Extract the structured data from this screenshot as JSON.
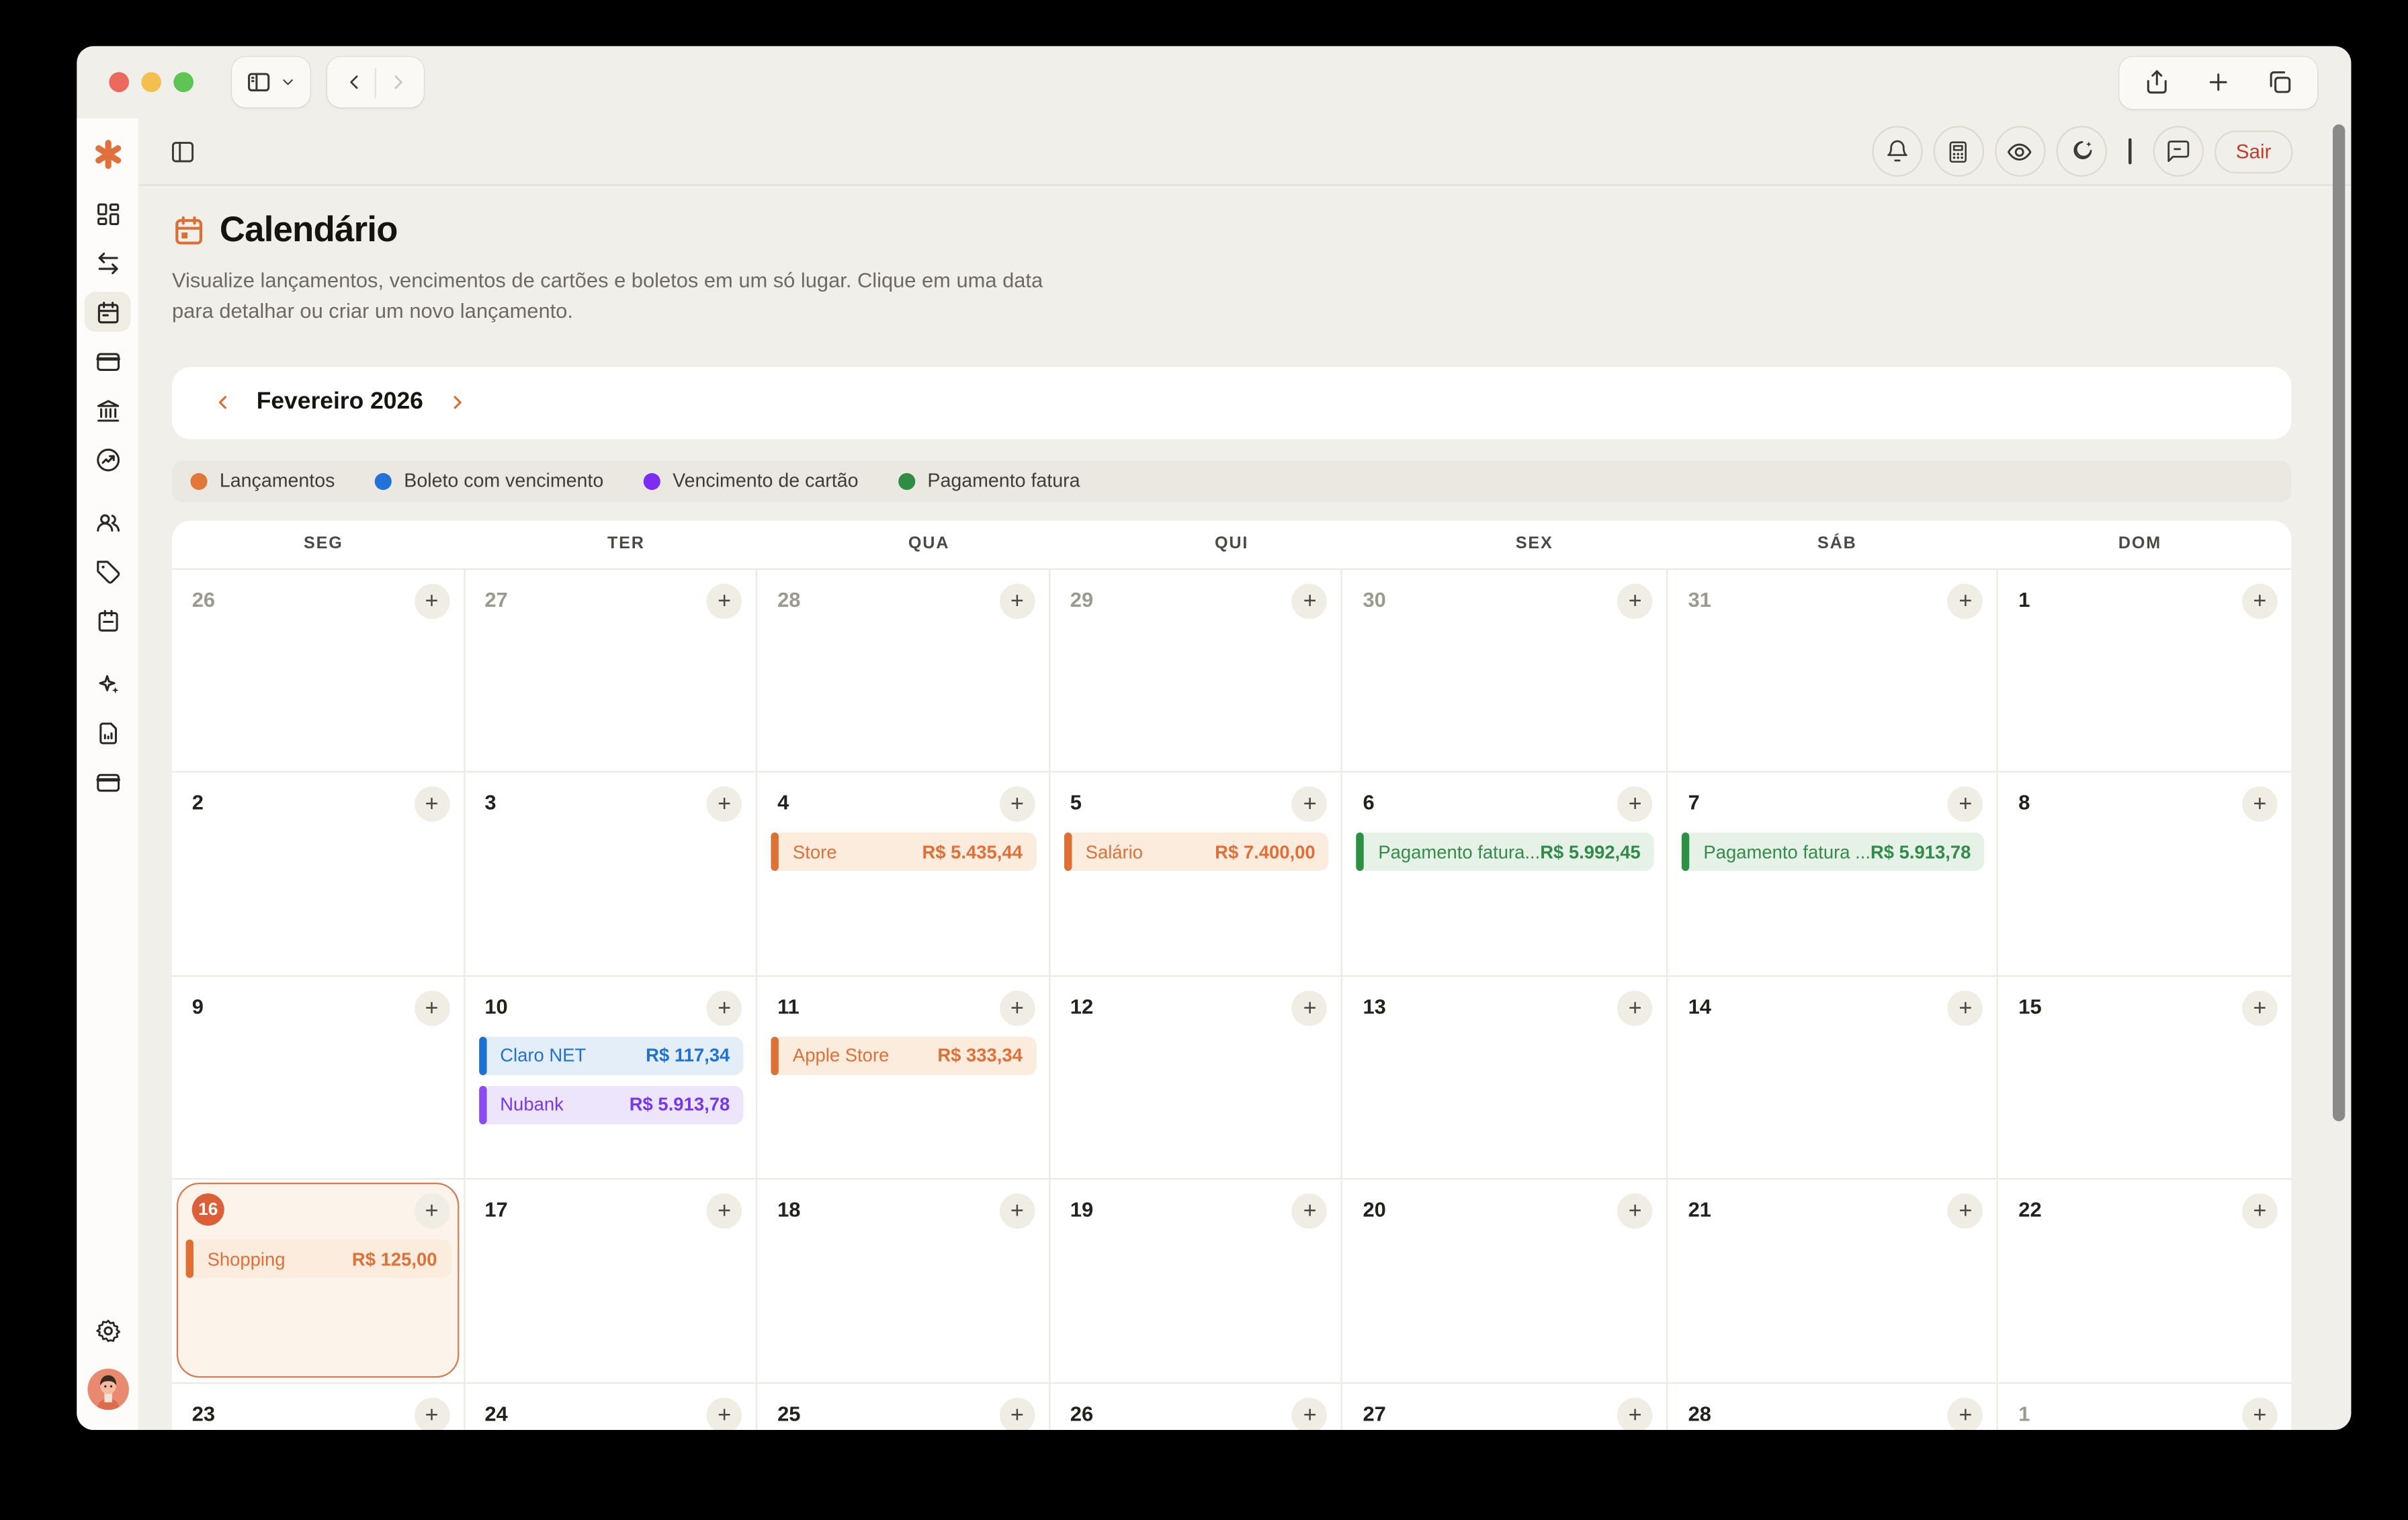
{
  "window_chrome": {
    "traffic_lights": [
      {
        "name": "close",
        "color": "#EC695E"
      },
      {
        "name": "minimize",
        "color": "#F3BF4E"
      },
      {
        "name": "maximize",
        "color": "#5EC454"
      }
    ]
  },
  "icons": {
    "toolbar": [
      "sidebar-toggle-icon",
      "chevron-down-icon",
      "back-icon",
      "forward-icon",
      "share-icon",
      "new-tab-icon",
      "tabs-icon"
    ],
    "app_header": [
      "panel-toggle-icon",
      "bell-icon",
      "calculator-icon",
      "eye-icon",
      "moon-icon",
      "chat-icon"
    ],
    "sidebar": [
      "logo-asterisk-icon",
      "dashboard-icon",
      "transfers-icon",
      "calendar-icon",
      "card-icon",
      "bank-icon",
      "goals-icon",
      "users-icon",
      "tag-icon",
      "planner-icon",
      "sparkles-icon",
      "report-icon",
      "wallet-icon",
      "gear-icon",
      "avatar"
    ]
  },
  "app": {
    "logout_label": "Sair"
  },
  "page": {
    "title": "Calendário",
    "subtitle": "Visualize lançamentos, vencimentos de cartões e boletos em um só lugar. Clique em uma data para detalhar ou criar um novo lançamento."
  },
  "month_nav": {
    "label": "Fevereiro 2026"
  },
  "legend": {
    "items": [
      {
        "label": "Lançamentos",
        "color": "#E0783A"
      },
      {
        "label": "Boleto com vencimento",
        "color": "#2273D8"
      },
      {
        "label": "Vencimento de cartão",
        "color": "#7D2DF3"
      },
      {
        "label": "Pagamento fatura",
        "color": "#2F8C44"
      }
    ]
  },
  "calendar": {
    "day_headers": [
      "SEG",
      "TER",
      "QUA",
      "QUI",
      "SEX",
      "SÁB",
      "DOM"
    ],
    "add_button_glyph": "+",
    "event_styles": {
      "lancamento": {
        "text": "#DF7038",
        "bg": "#FBECDE",
        "bar": "#DE6F35"
      },
      "boleto": {
        "text": "#1F71D4",
        "bg": "#E4EEF9",
        "bar": "#1E71D2"
      },
      "cartao": {
        "text": "#7638EE",
        "bg": "#EDE5FC",
        "bar": "#8A4CF0"
      },
      "fatura": {
        "text": "#338B49",
        "bg": "#E6F2E8",
        "bar": "#2C9145"
      }
    },
    "weeks": [
      [
        {
          "day": "26",
          "other": true
        },
        {
          "day": "27",
          "other": true
        },
        {
          "day": "28",
          "other": true
        },
        {
          "day": "29",
          "other": true
        },
        {
          "day": "30",
          "other": true
        },
        {
          "day": "31",
          "other": true
        },
        {
          "day": "1"
        }
      ],
      [
        {
          "day": "2"
        },
        {
          "day": "3"
        },
        {
          "day": "4",
          "events": [
            {
              "label": "Store",
              "amount": "R$ 5.435,44",
              "type": "lancamento"
            }
          ]
        },
        {
          "day": "5",
          "events": [
            {
              "label": "Salário",
              "amount": "R$ 7.400,00",
              "type": "lancamento"
            }
          ]
        },
        {
          "day": "6",
          "events": [
            {
              "label": "Pagamento fatura...",
              "amount": "R$ 5.992,45",
              "type": "fatura"
            }
          ]
        },
        {
          "day": "7",
          "events": [
            {
              "label": "Pagamento fatura ...",
              "amount": "R$ 5.913,78",
              "type": "fatura"
            }
          ]
        },
        {
          "day": "8"
        }
      ],
      [
        {
          "day": "9"
        },
        {
          "day": "10",
          "events": [
            {
              "label": "Claro NET",
              "amount": "R$ 117,34",
              "type": "boleto"
            },
            {
              "label": "Nubank",
              "amount": "R$ 5.913,78",
              "type": "cartao"
            }
          ]
        },
        {
          "day": "11",
          "events": [
            {
              "label": "Apple Store",
              "amount": "R$ 333,34",
              "type": "lancamento"
            }
          ]
        },
        {
          "day": "12"
        },
        {
          "day": "13"
        },
        {
          "day": "14"
        },
        {
          "day": "15"
        }
      ],
      [
        {
          "day": "16",
          "today": true,
          "events": [
            {
              "label": "Shopping",
              "amount": "R$ 125,00",
              "type": "lancamento"
            }
          ]
        },
        {
          "day": "17"
        },
        {
          "day": "18"
        },
        {
          "day": "19"
        },
        {
          "day": "20"
        },
        {
          "day": "21"
        },
        {
          "day": "22"
        }
      ],
      [
        {
          "day": "23"
        },
        {
          "day": "24"
        },
        {
          "day": "25"
        },
        {
          "day": "26"
        },
        {
          "day": "27"
        },
        {
          "day": "28"
        },
        {
          "day": "1",
          "other": true
        }
      ]
    ]
  }
}
